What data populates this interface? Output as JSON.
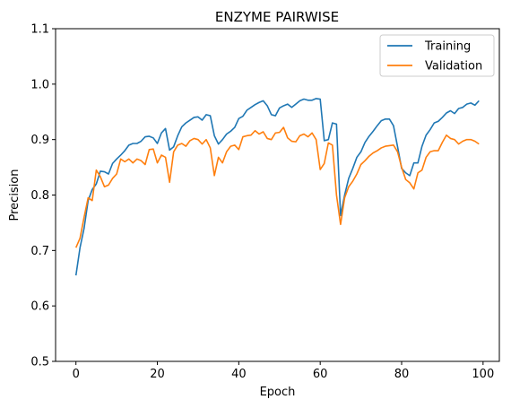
{
  "chart_data": {
    "type": "line",
    "title": "ENZYME PAIRWISE",
    "xlabel": "Epoch",
    "ylabel": "Precision",
    "xlim": [
      -5,
      104
    ],
    "ylim": [
      0.5,
      1.1
    ],
    "xticks": [
      0,
      20,
      40,
      60,
      80,
      100
    ],
    "xtick_labels": [
      "0",
      "20",
      "40",
      "60",
      "80",
      "100"
    ],
    "yticks": [
      0.5,
      0.6,
      0.7,
      0.8,
      0.9,
      1.0,
      1.1
    ],
    "ytick_labels": [
      "0.5",
      "0.6",
      "0.7",
      "0.8",
      "0.9",
      "1.0",
      "1.1"
    ],
    "grid": false,
    "legend_position": "top-right",
    "series": [
      {
        "name": "Training",
        "color": "#1f77b4",
        "values": [
          0.655,
          0.705,
          0.74,
          0.79,
          0.81,
          0.82,
          0.843,
          0.842,
          0.838,
          0.857,
          0.865,
          0.872,
          0.88,
          0.89,
          0.893,
          0.893,
          0.897,
          0.905,
          0.906,
          0.903,
          0.893,
          0.912,
          0.92,
          0.881,
          0.887,
          0.907,
          0.923,
          0.93,
          0.935,
          0.94,
          0.941,
          0.935,
          0.945,
          0.943,
          0.907,
          0.892,
          0.9,
          0.91,
          0.915,
          0.922,
          0.938,
          0.942,
          0.953,
          0.958,
          0.963,
          0.967,
          0.97,
          0.961,
          0.945,
          0.943,
          0.957,
          0.961,
          0.964,
          0.958,
          0.964,
          0.97,
          0.973,
          0.971,
          0.971,
          0.974,
          0.973,
          0.898,
          0.9,
          0.93,
          0.928,
          0.763,
          0.8,
          0.83,
          0.848,
          0.868,
          0.878,
          0.895,
          0.906,
          0.915,
          0.925,
          0.934,
          0.937,
          0.937,
          0.925,
          0.887,
          0.848,
          0.84,
          0.835,
          0.858,
          0.858,
          0.888,
          0.908,
          0.918,
          0.93,
          0.933,
          0.94,
          0.948,
          0.952,
          0.947,
          0.956,
          0.958,
          0.964,
          0.966,
          0.962,
          0.97
        ]
      },
      {
        "name": "Validation",
        "color": "#ff7f0e",
        "values": [
          0.705,
          0.722,
          0.76,
          0.795,
          0.79,
          0.845,
          0.833,
          0.815,
          0.818,
          0.83,
          0.838,
          0.865,
          0.86,
          0.865,
          0.858,
          0.865,
          0.862,
          0.855,
          0.882,
          0.883,
          0.858,
          0.872,
          0.868,
          0.823,
          0.878,
          0.89,
          0.893,
          0.888,
          0.898,
          0.902,
          0.9,
          0.892,
          0.9,
          0.885,
          0.835,
          0.868,
          0.858,
          0.878,
          0.888,
          0.89,
          0.882,
          0.905,
          0.907,
          0.908,
          0.916,
          0.91,
          0.914,
          0.902,
          0.9,
          0.912,
          0.913,
          0.922,
          0.903,
          0.897,
          0.896,
          0.907,
          0.91,
          0.905,
          0.912,
          0.9,
          0.846,
          0.857,
          0.894,
          0.89,
          0.8,
          0.747,
          0.795,
          0.815,
          0.825,
          0.838,
          0.855,
          0.862,
          0.87,
          0.876,
          0.88,
          0.885,
          0.888,
          0.889,
          0.89,
          0.878,
          0.85,
          0.828,
          0.822,
          0.811,
          0.84,
          0.845,
          0.868,
          0.878,
          0.88,
          0.88,
          0.895,
          0.908,
          0.902,
          0.9,
          0.892,
          0.897,
          0.9,
          0.9,
          0.897,
          0.892
        ]
      }
    ]
  }
}
